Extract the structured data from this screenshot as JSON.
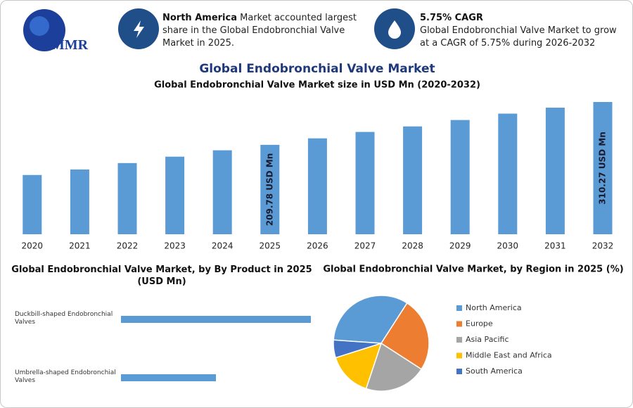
{
  "header": {
    "logo": "MMR",
    "info": [
      {
        "bold": "North America",
        "text": "Market accounted largest share in the Global Endobronchial Valve Market in 2025."
      },
      {
        "bold": "5.75% CAGR",
        "text": "Global Endobronchial Valve Market to grow at a CAGR of 5.75% during 2026-2032"
      }
    ]
  },
  "chart_data": [
    {
      "type": "bar",
      "title": "Global Endobronchial Valve Market",
      "subtitle": "Global Endobronchial Valve Market size in USD Mn (2020-2032)",
      "categories": [
        "2020",
        "2021",
        "2022",
        "2023",
        "2024",
        "2025",
        "2026",
        "2027",
        "2028",
        "2029",
        "2030",
        "2031",
        "2032"
      ],
      "values": [
        139,
        152,
        167,
        182,
        197,
        209.78,
        225,
        240,
        253,
        268,
        283,
        297,
        310.27
      ],
      "value_labels": [
        null,
        null,
        null,
        null,
        null,
        "209.78 USD Mn",
        null,
        null,
        null,
        null,
        null,
        null,
        "310.27 USD Mn"
      ],
      "color": "#5b9bd5"
    },
    {
      "type": "hbar",
      "title": "Global Endobronchial Valve Market, by By Product in 2025 (USD Mn)",
      "categories": [
        "Duckbill-shaped Endobronchial Valves",
        "Umbrella-shaped Endobronchial Valves"
      ],
      "values": [
        140,
        70
      ],
      "color": "#5b9bd5"
    },
    {
      "type": "pie",
      "title": "Global Endobronchial Valve Market, by Region in 2025 (%)",
      "series": [
        {
          "name": "North America",
          "color": "#5b9bd5",
          "values": [
            33
          ]
        },
        {
          "name": "Europe",
          "color": "#ed7d31",
          "values": [
            25
          ]
        },
        {
          "name": "Asia Pacific",
          "color": "#a5a5a5",
          "values": [
            21
          ]
        },
        {
          "name": "Middle East and Africa",
          "color": "#ffc000",
          "values": [
            15
          ]
        },
        {
          "name": "South America",
          "color": "#4472c4",
          "values": [
            6
          ]
        }
      ]
    }
  ]
}
